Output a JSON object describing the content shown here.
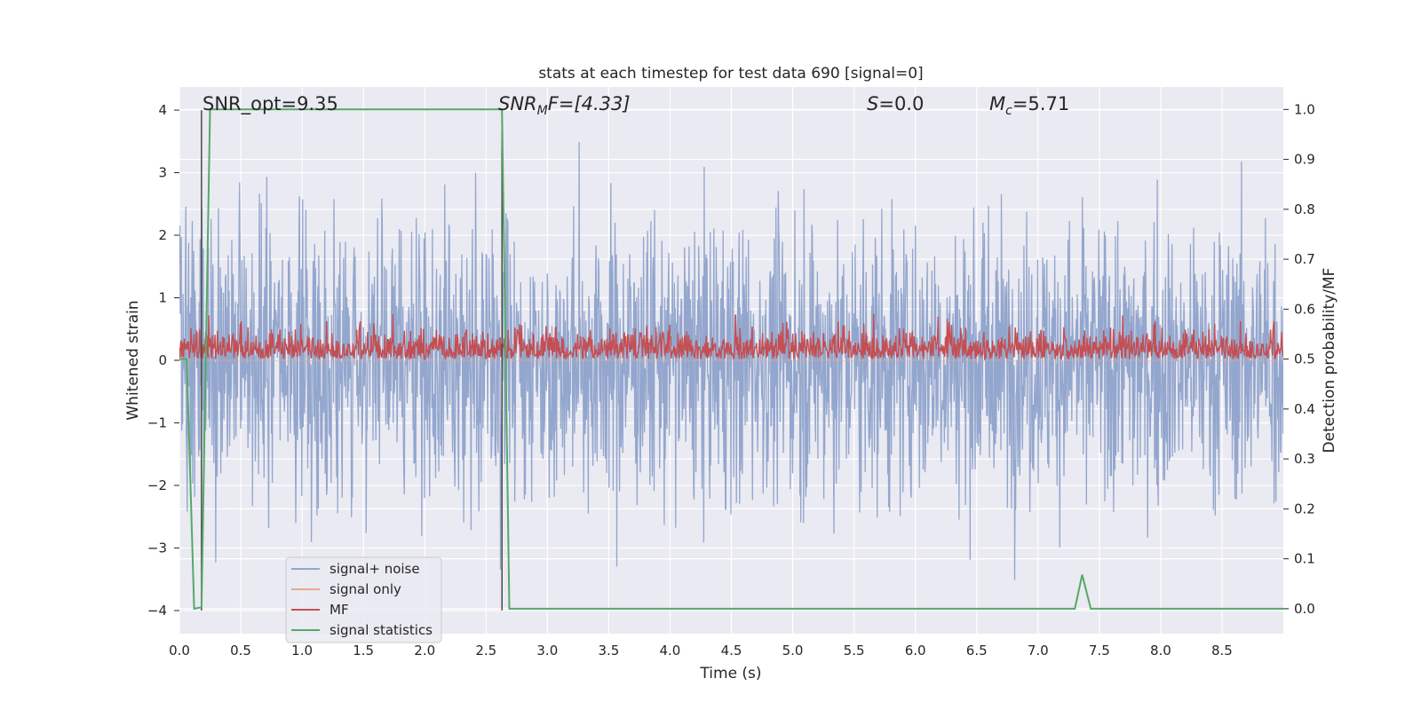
{
  "chart_data": {
    "type": "line",
    "title": "stats at each timestep for test data 690 [signal=0]",
    "xlabel": "Time (s)",
    "ylabel": "Whitened strain",
    "y2label": "Detection probability/MF",
    "xlim": [
      0.0,
      9.0
    ],
    "ylim": [
      -4.37,
      4.37
    ],
    "y2lim": [
      -0.05,
      1.045
    ],
    "xticks": [
      "0.0",
      "0.5",
      "1.0",
      "1.5",
      "2.0",
      "2.5",
      "3.0",
      "3.5",
      "4.0",
      "4.5",
      "5.0",
      "5.5",
      "6.0",
      "6.5",
      "7.0",
      "7.5",
      "8.0",
      "8.5"
    ],
    "yticks": [
      "−4",
      "−3",
      "−2",
      "−1",
      "0",
      "1",
      "2",
      "3",
      "4"
    ],
    "y2ticks": [
      "0.0",
      "0.1",
      "0.2",
      "0.3",
      "0.4",
      "0.5",
      "0.6",
      "0.7",
      "0.8",
      "0.9",
      "1.0"
    ],
    "grid": true,
    "legend_position": "lower-left",
    "annotations": {
      "snr_opt": "SNR_opt=9.35",
      "snr_mf_italic": "SNR",
      "snr_mf_sub": "M",
      "snr_mf_rest": "F=[4.33]",
      "s_italic": "S",
      "s_rest": "=0.0",
      "mc_italic": "M",
      "mc_sub": "c",
      "mc_rest": "=5.71"
    },
    "colors": {
      "noise": "#93a6cd",
      "signal_only": "#e8a989",
      "mf": "#c44e52",
      "stats": "#55a868",
      "marker": "#4a4a4a",
      "background": "#eaeaf2",
      "grid": "#ffffff"
    },
    "series": [
      {
        "name": "signal+ noise",
        "axis": "left",
        "kind": "noise_band",
        "t_range": [
          0.0,
          9.0
        ],
        "typical_abs_amplitude": 1.6,
        "max_abs_amplitude": 4.0
      },
      {
        "name": "signal only",
        "axis": "left",
        "kind": "flat",
        "value": 0.0
      },
      {
        "name": "MF",
        "axis": "right",
        "kind": "noise_band",
        "t_range": [
          0.0,
          9.0
        ],
        "baseline": 0.5,
        "typical_max": 0.58,
        "max": 0.63
      },
      {
        "name": "signal statistics",
        "axis": "right",
        "kind": "line",
        "x": [
          0.0,
          0.06,
          0.12,
          0.18,
          0.25,
          0.3,
          2.55,
          2.63,
          2.69,
          7.3,
          7.36,
          7.43,
          7.7,
          9.0
        ],
        "y": [
          0.5,
          0.5,
          0.0,
          0.003,
          1.0,
          1.0,
          1.0,
          1.0,
          0.0,
          0.0,
          0.068,
          0.0,
          0.0,
          0.0
        ]
      }
    ],
    "markers": [
      {
        "x": 0.18,
        "y_from": -4.0,
        "y_to": 4.0
      },
      {
        "x": 2.63,
        "y_from": -4.0,
        "y_to": 4.0
      }
    ]
  }
}
